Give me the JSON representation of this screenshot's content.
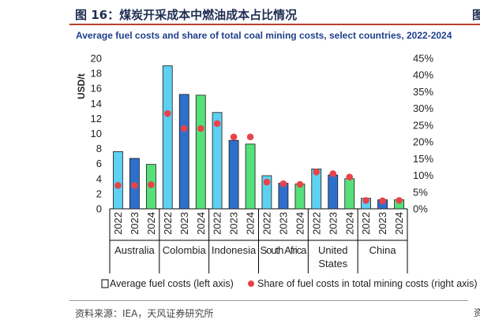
{
  "figure_title": "图 16：煤炭开采成本中燃油成本占比情况",
  "source": "资料来源：IEA，天风证券研究所",
  "edge_glyph_top": "图",
  "edge_glyph_bottom": "资",
  "colors": {
    "bar_light": "#5ed0f0",
    "bar_mid": "#2f6fcc",
    "bar_green": "#55e07a",
    "dot": "#e8434b",
    "title_rule": "#b8412c",
    "chart_title": "#1d3f8c"
  },
  "chart_data": {
    "type": "bar",
    "title": "Average fuel costs and share of total coal mining costs, select countries, 2022-2024",
    "ylabel": "USD/t",
    "ylim": [
      0,
      20
    ],
    "y_ticks": [
      0,
      2,
      4,
      6,
      8,
      10,
      12,
      14,
      16,
      18,
      20
    ],
    "y2lim": [
      0,
      0.45
    ],
    "y2_ticks": [
      "0%",
      "5%",
      "10%",
      "15%",
      "20%",
      "25%",
      "30%",
      "35%",
      "40%",
      "45%"
    ],
    "x_years": [
      "2022",
      "2023",
      "2024"
    ],
    "groups": [
      {
        "name": "Australia",
        "fuel": [
          7.6,
          6.7,
          5.9
        ],
        "share": [
          0.07,
          0.07,
          0.072
        ]
      },
      {
        "name": "Colombia",
        "fuel": [
          19.0,
          15.2,
          15.1
        ],
        "share": [
          0.285,
          0.24,
          0.24
        ]
      },
      {
        "name": "Indonesia",
        "fuel": [
          12.8,
          9.1,
          8.6
        ],
        "share": [
          0.255,
          0.215,
          0.215
        ]
      },
      {
        "name": "South Africa",
        "fuel": [
          4.4,
          3.4,
          3.3
        ],
        "share": [
          0.08,
          0.075,
          0.073
        ]
      },
      {
        "name": "United States",
        "fuel": [
          5.3,
          4.5,
          4.0
        ],
        "share": [
          0.11,
          0.105,
          0.095
        ]
      },
      {
        "name": "China",
        "fuel": [
          1.4,
          1.2,
          1.2
        ],
        "share": [
          0.025,
          0.024,
          0.025
        ]
      }
    ],
    "series": [
      {
        "name": "Average fuel costs (left axis)",
        "kind": "bar"
      },
      {
        "name": "Share of fuel costs in total mining costs (right axis)",
        "kind": "dot"
      }
    ],
    "legend": "bottom"
  }
}
